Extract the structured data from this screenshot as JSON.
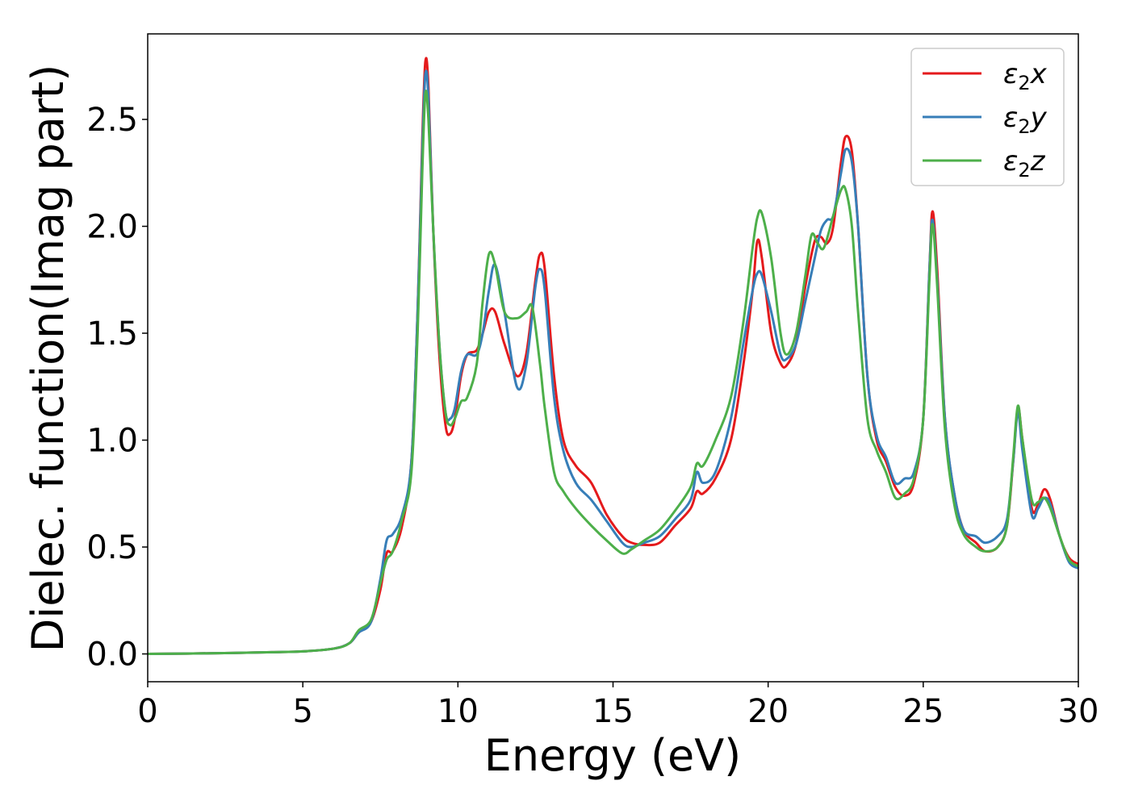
{
  "chart_data": {
    "type": "line",
    "xlabel": "Energy (eV)",
    "ylabel": "Dielec. function(Imag part)",
    "xlim": [
      0,
      30
    ],
    "ylim": [
      -0.13,
      2.9
    ],
    "xticks": [
      0,
      5,
      10,
      15,
      20,
      25,
      30
    ],
    "yticks": [
      0.0,
      0.5,
      1.0,
      1.5,
      2.0,
      2.5
    ],
    "xtick_labels": [
      "0",
      "5",
      "10",
      "15",
      "20",
      "25",
      "30"
    ],
    "ytick_labels": [
      "0.0",
      "0.5",
      "1.0",
      "1.5",
      "2.0",
      "2.5"
    ],
    "grid": false,
    "legend_position": "top-right",
    "series": [
      {
        "name": "ε2x",
        "legend_base": "ε",
        "legend_sub": "2",
        "legend_tail": "x",
        "color": "#e41a1c",
        "points": [
          [
            0,
            0.0
          ],
          [
            2,
            0.003
          ],
          [
            4,
            0.008
          ],
          [
            5,
            0.012
          ],
          [
            6,
            0.025
          ],
          [
            6.5,
            0.05
          ],
          [
            6.8,
            0.1
          ],
          [
            7.2,
            0.15
          ],
          [
            7.5,
            0.3
          ],
          [
            7.7,
            0.47
          ],
          [
            7.9,
            0.48
          ],
          [
            8.2,
            0.6
          ],
          [
            8.5,
            0.9
          ],
          [
            8.7,
            1.6
          ],
          [
            8.85,
            2.4
          ],
          [
            8.95,
            2.77
          ],
          [
            9.05,
            2.65
          ],
          [
            9.2,
            2.0
          ],
          [
            9.4,
            1.4
          ],
          [
            9.6,
            1.07
          ],
          [
            9.75,
            1.03
          ],
          [
            9.9,
            1.1
          ],
          [
            10.1,
            1.3
          ],
          [
            10.3,
            1.4
          ],
          [
            10.6,
            1.42
          ],
          [
            10.8,
            1.5
          ],
          [
            11.0,
            1.6
          ],
          [
            11.2,
            1.6
          ],
          [
            11.5,
            1.45
          ],
          [
            11.9,
            1.3
          ],
          [
            12.2,
            1.4
          ],
          [
            12.5,
            1.75
          ],
          [
            12.65,
            1.87
          ],
          [
            12.8,
            1.8
          ],
          [
            13.1,
            1.3
          ],
          [
            13.4,
            1.0
          ],
          [
            13.8,
            0.88
          ],
          [
            14.3,
            0.8
          ],
          [
            14.8,
            0.65
          ],
          [
            15.3,
            0.55
          ],
          [
            15.6,
            0.52
          ],
          [
            16.0,
            0.51
          ],
          [
            16.5,
            0.52
          ],
          [
            17.0,
            0.6
          ],
          [
            17.5,
            0.68
          ],
          [
            17.7,
            0.76
          ],
          [
            17.9,
            0.75
          ],
          [
            18.3,
            0.82
          ],
          [
            18.8,
            1.0
          ],
          [
            19.2,
            1.35
          ],
          [
            19.5,
            1.7
          ],
          [
            19.65,
            1.93
          ],
          [
            19.8,
            1.85
          ],
          [
            20.1,
            1.5
          ],
          [
            20.4,
            1.36
          ],
          [
            20.6,
            1.35
          ],
          [
            20.9,
            1.45
          ],
          [
            21.2,
            1.72
          ],
          [
            21.5,
            1.93
          ],
          [
            21.7,
            1.95
          ],
          [
            21.9,
            1.92
          ],
          [
            22.1,
            2.0
          ],
          [
            22.35,
            2.3
          ],
          [
            22.5,
            2.42
          ],
          [
            22.7,
            2.35
          ],
          [
            22.9,
            2.0
          ],
          [
            23.2,
            1.3
          ],
          [
            23.5,
            1.0
          ],
          [
            23.8,
            0.9
          ],
          [
            24.1,
            0.78
          ],
          [
            24.4,
            0.74
          ],
          [
            24.7,
            0.8
          ],
          [
            25.0,
            1.1
          ],
          [
            25.2,
            1.8
          ],
          [
            25.3,
            2.07
          ],
          [
            25.45,
            1.8
          ],
          [
            25.7,
            1.1
          ],
          [
            26.0,
            0.75
          ],
          [
            26.3,
            0.58
          ],
          [
            26.7,
            0.52
          ],
          [
            27.0,
            0.48
          ],
          [
            27.4,
            0.5
          ],
          [
            27.7,
            0.6
          ],
          [
            27.9,
            0.9
          ],
          [
            28.05,
            1.15
          ],
          [
            28.2,
            1.0
          ],
          [
            28.5,
            0.68
          ],
          [
            28.7,
            0.7
          ],
          [
            28.9,
            0.77
          ],
          [
            29.1,
            0.72
          ],
          [
            29.4,
            0.55
          ],
          [
            29.7,
            0.45
          ],
          [
            30,
            0.42
          ]
        ]
      },
      {
        "name": "ε2y",
        "legend_base": "ε",
        "legend_sub": "2",
        "legend_tail": "y",
        "color": "#377eb8",
        "points": [
          [
            0,
            0.0
          ],
          [
            2,
            0.003
          ],
          [
            4,
            0.008
          ],
          [
            5,
            0.012
          ],
          [
            6,
            0.025
          ],
          [
            6.5,
            0.05
          ],
          [
            6.8,
            0.1
          ],
          [
            7.2,
            0.15
          ],
          [
            7.5,
            0.35
          ],
          [
            7.7,
            0.53
          ],
          [
            7.9,
            0.56
          ],
          [
            8.2,
            0.65
          ],
          [
            8.5,
            0.9
          ],
          [
            8.7,
            1.6
          ],
          [
            8.85,
            2.35
          ],
          [
            8.95,
            2.71
          ],
          [
            9.05,
            2.6
          ],
          [
            9.2,
            2.0
          ],
          [
            9.4,
            1.45
          ],
          [
            9.6,
            1.13
          ],
          [
            9.75,
            1.1
          ],
          [
            9.9,
            1.15
          ],
          [
            10.1,
            1.32
          ],
          [
            10.3,
            1.4
          ],
          [
            10.6,
            1.4
          ],
          [
            10.8,
            1.5
          ],
          [
            11.0,
            1.7
          ],
          [
            11.2,
            1.82
          ],
          [
            11.5,
            1.6
          ],
          [
            11.9,
            1.25
          ],
          [
            12.2,
            1.35
          ],
          [
            12.5,
            1.72
          ],
          [
            12.65,
            1.8
          ],
          [
            12.8,
            1.7
          ],
          [
            13.1,
            1.2
          ],
          [
            13.4,
            0.95
          ],
          [
            13.8,
            0.8
          ],
          [
            14.3,
            0.72
          ],
          [
            14.8,
            0.62
          ],
          [
            15.3,
            0.52
          ],
          [
            15.6,
            0.5
          ],
          [
            16.0,
            0.52
          ],
          [
            16.5,
            0.55
          ],
          [
            17.0,
            0.63
          ],
          [
            17.5,
            0.72
          ],
          [
            17.7,
            0.85
          ],
          [
            17.9,
            0.8
          ],
          [
            18.3,
            0.85
          ],
          [
            18.8,
            1.1
          ],
          [
            19.2,
            1.45
          ],
          [
            19.5,
            1.7
          ],
          [
            19.65,
            1.78
          ],
          [
            19.8,
            1.77
          ],
          [
            20.1,
            1.6
          ],
          [
            20.4,
            1.4
          ],
          [
            20.6,
            1.38
          ],
          [
            20.9,
            1.45
          ],
          [
            21.2,
            1.65
          ],
          [
            21.5,
            1.85
          ],
          [
            21.7,
            1.98
          ],
          [
            21.9,
            2.03
          ],
          [
            22.1,
            2.05
          ],
          [
            22.35,
            2.25
          ],
          [
            22.5,
            2.36
          ],
          [
            22.7,
            2.3
          ],
          [
            22.9,
            2.0
          ],
          [
            23.2,
            1.3
          ],
          [
            23.5,
            1.02
          ],
          [
            23.8,
            0.92
          ],
          [
            24.1,
            0.8
          ],
          [
            24.4,
            0.82
          ],
          [
            24.7,
            0.85
          ],
          [
            25.0,
            1.1
          ],
          [
            25.2,
            1.8
          ],
          [
            25.3,
            2.03
          ],
          [
            25.45,
            1.75
          ],
          [
            25.7,
            1.1
          ],
          [
            26.0,
            0.75
          ],
          [
            26.3,
            0.58
          ],
          [
            26.7,
            0.55
          ],
          [
            27.0,
            0.52
          ],
          [
            27.4,
            0.55
          ],
          [
            27.7,
            0.63
          ],
          [
            27.9,
            0.9
          ],
          [
            28.05,
            1.13
          ],
          [
            28.2,
            0.95
          ],
          [
            28.5,
            0.65
          ],
          [
            28.7,
            0.68
          ],
          [
            28.9,
            0.73
          ],
          [
            29.1,
            0.7
          ],
          [
            29.4,
            0.55
          ],
          [
            29.7,
            0.43
          ],
          [
            30,
            0.4
          ]
        ]
      },
      {
        "name": "ε2z",
        "legend_base": "ε",
        "legend_sub": "2",
        "legend_tail": "z",
        "color": "#4daf4a",
        "points": [
          [
            0,
            0.0
          ],
          [
            2,
            0.003
          ],
          [
            4,
            0.008
          ],
          [
            5,
            0.012
          ],
          [
            6,
            0.025
          ],
          [
            6.5,
            0.05
          ],
          [
            6.8,
            0.11
          ],
          [
            7.2,
            0.16
          ],
          [
            7.5,
            0.33
          ],
          [
            7.7,
            0.44
          ],
          [
            7.9,
            0.48
          ],
          [
            8.2,
            0.63
          ],
          [
            8.5,
            0.85
          ],
          [
            8.7,
            1.5
          ],
          [
            8.85,
            2.25
          ],
          [
            8.95,
            2.62
          ],
          [
            9.05,
            2.5
          ],
          [
            9.2,
            2.0
          ],
          [
            9.4,
            1.45
          ],
          [
            9.6,
            1.13
          ],
          [
            9.75,
            1.07
          ],
          [
            9.9,
            1.1
          ],
          [
            10.1,
            1.18
          ],
          [
            10.3,
            1.2
          ],
          [
            10.6,
            1.35
          ],
          [
            10.8,
            1.65
          ],
          [
            11.0,
            1.87
          ],
          [
            11.2,
            1.82
          ],
          [
            11.5,
            1.6
          ],
          [
            11.9,
            1.57
          ],
          [
            12.2,
            1.6
          ],
          [
            12.4,
            1.62
          ],
          [
            12.65,
            1.35
          ],
          [
            12.8,
            1.15
          ],
          [
            13.1,
            0.85
          ],
          [
            13.4,
            0.76
          ],
          [
            13.8,
            0.68
          ],
          [
            14.3,
            0.6
          ],
          [
            14.8,
            0.53
          ],
          [
            15.3,
            0.47
          ],
          [
            15.6,
            0.49
          ],
          [
            16.0,
            0.53
          ],
          [
            16.5,
            0.58
          ],
          [
            17.0,
            0.67
          ],
          [
            17.5,
            0.78
          ],
          [
            17.7,
            0.89
          ],
          [
            17.9,
            0.88
          ],
          [
            18.3,
            1.0
          ],
          [
            18.8,
            1.2
          ],
          [
            19.2,
            1.55
          ],
          [
            19.5,
            1.9
          ],
          [
            19.65,
            2.04
          ],
          [
            19.8,
            2.06
          ],
          [
            20.1,
            1.85
          ],
          [
            20.4,
            1.5
          ],
          [
            20.6,
            1.4
          ],
          [
            20.9,
            1.5
          ],
          [
            21.2,
            1.77
          ],
          [
            21.4,
            1.96
          ],
          [
            21.6,
            1.92
          ],
          [
            21.8,
            1.9
          ],
          [
            22.1,
            2.05
          ],
          [
            22.35,
            2.17
          ],
          [
            22.5,
            2.17
          ],
          [
            22.7,
            2.0
          ],
          [
            22.9,
            1.6
          ],
          [
            23.2,
            1.1
          ],
          [
            23.5,
            0.95
          ],
          [
            23.8,
            0.85
          ],
          [
            24.1,
            0.73
          ],
          [
            24.4,
            0.75
          ],
          [
            24.7,
            0.82
          ],
          [
            25.0,
            1.1
          ],
          [
            25.2,
            1.75
          ],
          [
            25.3,
            2.01
          ],
          [
            25.45,
            1.72
          ],
          [
            25.7,
            1.05
          ],
          [
            26.0,
            0.7
          ],
          [
            26.3,
            0.56
          ],
          [
            26.7,
            0.5
          ],
          [
            27.0,
            0.48
          ],
          [
            27.4,
            0.5
          ],
          [
            27.7,
            0.6
          ],
          [
            27.9,
            0.92
          ],
          [
            28.05,
            1.16
          ],
          [
            28.2,
            1.0
          ],
          [
            28.5,
            0.72
          ],
          [
            28.7,
            0.71
          ],
          [
            28.9,
            0.73
          ],
          [
            29.1,
            0.68
          ],
          [
            29.4,
            0.55
          ],
          [
            29.7,
            0.44
          ],
          [
            30,
            0.41
          ]
        ]
      }
    ]
  }
}
